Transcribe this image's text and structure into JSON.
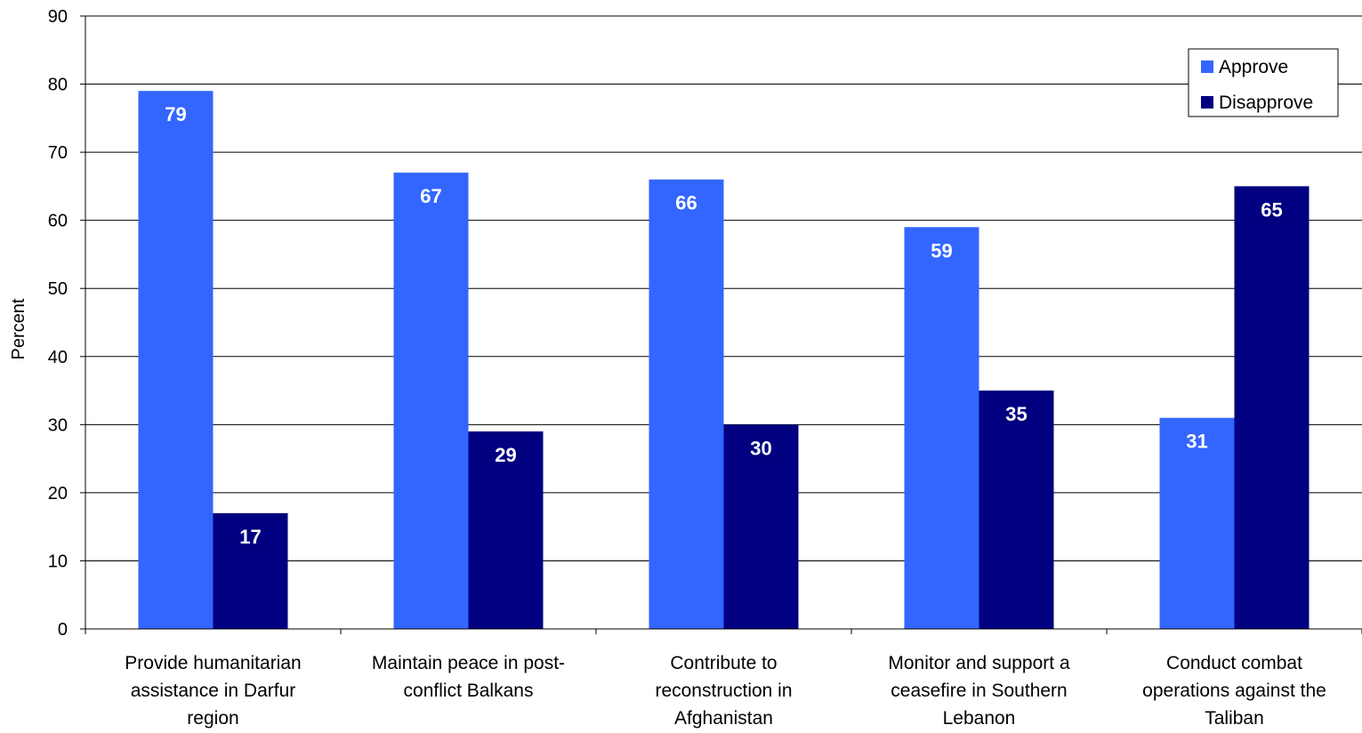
{
  "chart_data": {
    "type": "bar",
    "title": "",
    "xlabel": "",
    "ylabel": "Percent",
    "ylim": [
      0,
      90
    ],
    "yticks": [
      0,
      10,
      20,
      30,
      40,
      50,
      60,
      70,
      80,
      90
    ],
    "grid": true,
    "legend_position": "top-right",
    "categories": [
      [
        "Provide humanitarian",
        "assistance in Darfur",
        "region"
      ],
      [
        "Maintain peace in post-",
        "conflict Balkans"
      ],
      [
        "Contribute to",
        "reconstruction in",
        "Afghanistan"
      ],
      [
        "Monitor and support a",
        "ceasefire in Southern",
        "Lebanon"
      ],
      [
        "Conduct combat",
        "operations against the",
        "Taliban"
      ]
    ],
    "series": [
      {
        "name": "Approve",
        "color": "#3366ff",
        "values": [
          79,
          67,
          66,
          59,
          31
        ]
      },
      {
        "name": "Disapprove",
        "color": "#000080",
        "values": [
          17,
          29,
          30,
          35,
          65
        ]
      }
    ]
  }
}
